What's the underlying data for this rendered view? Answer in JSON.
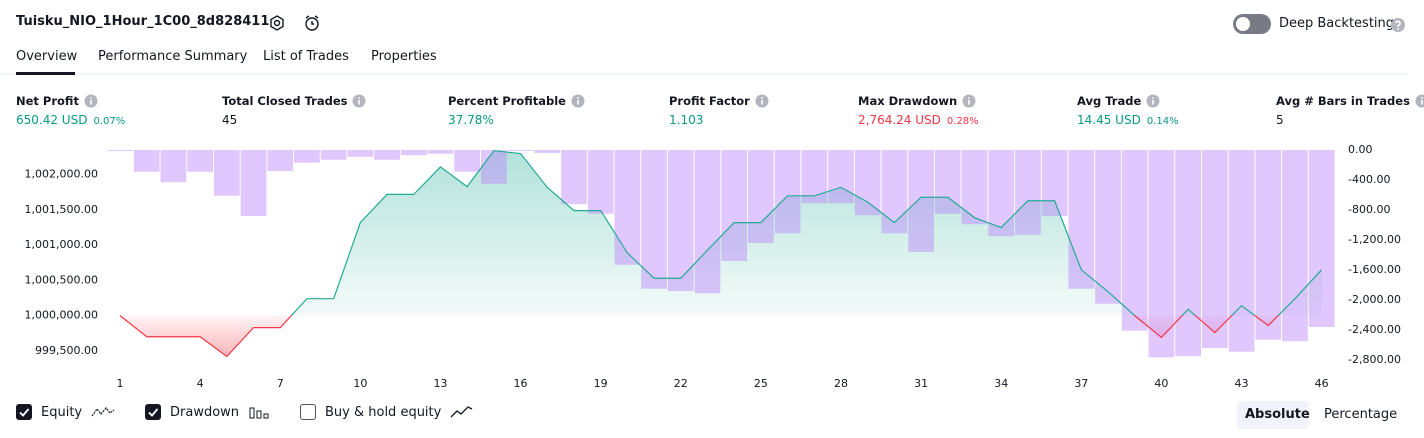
{
  "header": {
    "title": "Tuisku_NIO_1Hour_1C00_8d828411",
    "toggle_label": "Deep Backtesting"
  },
  "tabs": [
    "Overview",
    "Performance Summary",
    "List of Trades",
    "Properties"
  ],
  "metrics": [
    {
      "label": "Net Profit",
      "value": "650.42 USD",
      "percent": "0.07%",
      "tone": "green"
    },
    {
      "label": "Total Closed Trades",
      "value": "45",
      "tone": "dark"
    },
    {
      "label": "Percent Profitable",
      "value": "37.78%",
      "tone": "green"
    },
    {
      "label": "Profit Factor",
      "value": "1.103",
      "tone": "green"
    },
    {
      "label": "Max Drawdown",
      "value": "2,764.24 USD",
      "percent": "0.28%",
      "tone": "red"
    },
    {
      "label": "Avg Trade",
      "value": "14.45 USD",
      "percent": "0.14%",
      "tone": "green"
    },
    {
      "label": "Avg # Bars in Trades",
      "value": "5",
      "tone": "dark"
    }
  ],
  "chart_data": {
    "type": "combo",
    "x": [
      1,
      2,
      3,
      4,
      5,
      6,
      7,
      8,
      9,
      10,
      11,
      12,
      13,
      14,
      15,
      16,
      17,
      18,
      19,
      20,
      21,
      22,
      23,
      24,
      25,
      26,
      27,
      28,
      29,
      30,
      31,
      32,
      33,
      34,
      35,
      36,
      37,
      38,
      39,
      40,
      41,
      42,
      43,
      44,
      45,
      46
    ],
    "series": [
      {
        "name": "Equity",
        "type": "line",
        "axis": "y",
        "color": "#22ab94",
        "negative_color": "#f23645",
        "values": [
          1000000,
          999700,
          999700,
          999700,
          999420,
          999830,
          999830,
          1000240,
          1000240,
          1001320,
          1001720,
          1001720,
          1002110,
          1001830,
          1002340,
          1002300,
          1001820,
          1001490,
          1001490,
          1000890,
          1000530,
          1000530,
          1000930,
          1001320,
          1001320,
          1001700,
          1001700,
          1001820,
          1001610,
          1001320,
          1001680,
          1001680,
          1001390,
          1001250,
          1001630,
          1001630,
          1000650,
          1000340,
          1000000,
          999690,
          1000090,
          999760,
          1000140,
          999860,
          1000240,
          1000650
        ]
      },
      {
        "name": "Drawdown",
        "type": "bar",
        "axis": "y2",
        "color": "#ba82fa",
        "values": [
          0,
          -290,
          -430,
          -290,
          -610,
          -880,
          -280,
          -170,
          -130,
          -90,
          -130,
          -70,
          -50,
          -290,
          -450,
          0,
          -40,
          -720,
          -850,
          -1530,
          -1850,
          -1880,
          -1910,
          -1480,
          -1240,
          -1110,
          -710,
          -710,
          -870,
          -1110,
          -1360,
          -850,
          -990,
          -1150,
          -1130,
          -880,
          -1850,
          -2050,
          -2410,
          -2764,
          -2750,
          -2640,
          -2690,
          -2530,
          -2550,
          -2360
        ]
      }
    ],
    "xlim": [
      0.55,
      46.5
    ],
    "xticks": [
      1,
      4,
      7,
      10,
      13,
      16,
      19,
      22,
      25,
      28,
      31,
      34,
      37,
      40,
      43,
      46
    ],
    "ylim": [
      999200,
      1002350
    ],
    "yticks": [
      {
        "value": 999500,
        "label": "999,500.00"
      },
      {
        "value": 1000000,
        "label": "1,000,000.00"
      },
      {
        "value": 1000500,
        "label": "1,000,500.00"
      },
      {
        "value": 1001000,
        "label": "1,001,000.00"
      },
      {
        "value": 1001500,
        "label": "1,001,500.00"
      },
      {
        "value": 1002000,
        "label": "1,002,000.00"
      }
    ],
    "y2lim": [
      -2960,
      0
    ],
    "y2ticks": [
      {
        "value": 0,
        "label": "0.00"
      },
      {
        "value": -400,
        "label": "-400.00"
      },
      {
        "value": -800,
        "label": "-800.00"
      },
      {
        "value": -1200,
        "label": "-1,200.00"
      },
      {
        "value": -1600,
        "label": "-1,600.00"
      },
      {
        "value": -2000,
        "label": "-2,000.00"
      },
      {
        "value": -2400,
        "label": "-2,400.00"
      },
      {
        "value": -2800,
        "label": "-2,800.00"
      }
    ]
  },
  "controls": {
    "series_checked": [
      true,
      true
    ],
    "extra_checkbox": {
      "label": "Buy & hold equity",
      "checked": false
    },
    "modes": [
      "Absolute",
      "Percentage"
    ]
  }
}
